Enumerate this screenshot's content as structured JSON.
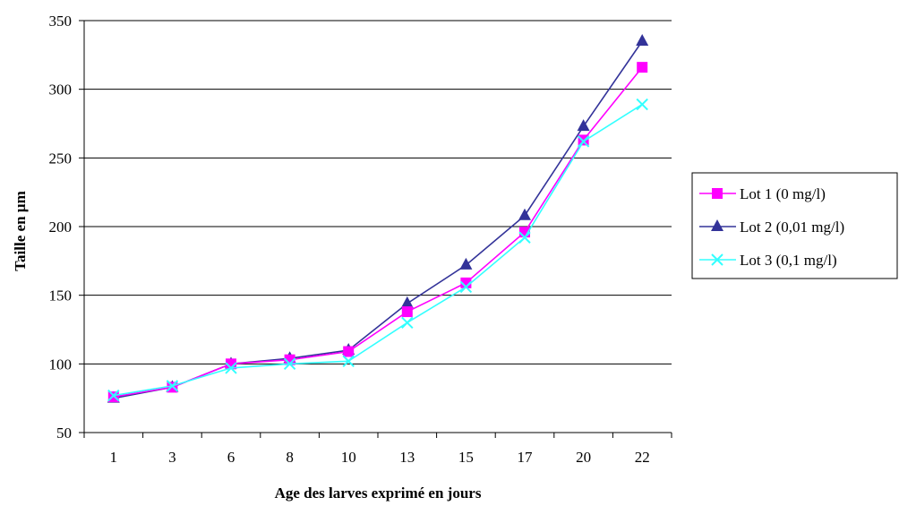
{
  "chart_data": {
    "type": "line",
    "title": "",
    "xlabel": "Age des larves exprimé en jours",
    "ylabel": "Taille en µm",
    "categories": [
      "1",
      "3",
      "6",
      "8",
      "10",
      "13",
      "15",
      "17",
      "20",
      "22"
    ],
    "ylim": [
      50,
      350
    ],
    "yticks": [
      50,
      100,
      150,
      200,
      250,
      300,
      350
    ],
    "grid": "horizontal",
    "legend_position": "right",
    "series": [
      {
        "name": "Lot 1 (0 mg/l)",
        "color": "#ff00ff",
        "marker": "square",
        "values": [
          76,
          83,
          100,
          103,
          109,
          138,
          159,
          196,
          263,
          316
        ]
      },
      {
        "name": "Lot 2 (0,01 mg/l)",
        "color": "#333399",
        "marker": "triangle",
        "values": [
          75,
          83,
          100,
          104,
          110,
          144,
          172,
          208,
          273,
          335
        ]
      },
      {
        "name": "Lot 3 (0,1 mg/l)",
        "color": "#33ffff",
        "marker": "x",
        "values": [
          77,
          84,
          97,
          100,
          102,
          130,
          156,
          192,
          262,
          289
        ]
      }
    ]
  }
}
